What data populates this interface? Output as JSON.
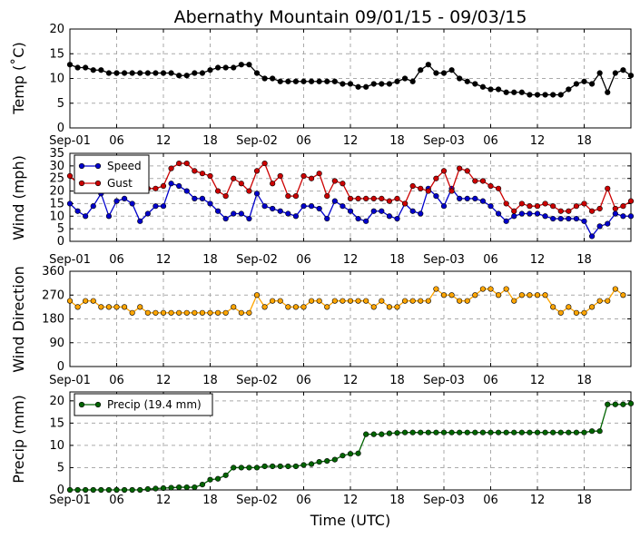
{
  "title": "Abernathy Mountain 09/01/15 - 09/03/15",
  "xlabel": "Time (UTC)",
  "x_tick_labels": [
    "Sep-01",
    "06",
    "12",
    "18",
    "Sep-02",
    "06",
    "12",
    "18",
    "Sep-03",
    "06",
    "12",
    "18"
  ],
  "colors": {
    "temp": "#000000",
    "speed": "#0000cc",
    "gust": "#cc0000",
    "direction": "#ffa500",
    "precip": "#006400",
    "grid": "#aaaaaa"
  },
  "chart_data": [
    {
      "id": "temp",
      "type": "line",
      "ylabel": "Temp (˚C)",
      "ylim": [
        0,
        20
      ],
      "yticks": [
        0,
        5,
        10,
        15,
        20
      ],
      "x_start_hour": 0,
      "x_step_hours": 1,
      "series": [
        {
          "name": "Temp",
          "color_key": "temp",
          "values": [
            12.8,
            12.2,
            12.2,
            11.7,
            11.7,
            11.1,
            11.1,
            11.1,
            11.1,
            11.1,
            11.1,
            11.1,
            11.1,
            11.1,
            10.6,
            10.6,
            11.1,
            11.1,
            11.7,
            12.2,
            12.2,
            12.2,
            12.8,
            12.8,
            11.1,
            10.0,
            10.0,
            9.4,
            9.4,
            9.4,
            9.4,
            9.4,
            9.4,
            9.4,
            9.4,
            8.9,
            8.9,
            8.3,
            8.3,
            8.9,
            8.9,
            8.9,
            9.4,
            10.0,
            9.4,
            11.7,
            12.8,
            11.1,
            11.1,
            11.7,
            10.0,
            9.4,
            8.9,
            8.3,
            7.8,
            7.8,
            7.2,
            7.2,
            7.2,
            6.7,
            6.7,
            6.7,
            6.7,
            6.7,
            7.8,
            8.9,
            9.4,
            8.9,
            11.1,
            7.2,
            11.1,
            11.7,
            10.6
          ]
        }
      ]
    },
    {
      "id": "wind",
      "type": "line",
      "ylabel": "Wind (mph)",
      "ylim": [
        0,
        35
      ],
      "yticks": [
        0,
        5,
        10,
        15,
        20,
        25,
        30,
        35
      ],
      "x_start_hour": 0,
      "x_step_hours": 1,
      "legend": {
        "placement": "upper-left",
        "labels": [
          "Speed",
          "Gust"
        ]
      },
      "series": [
        {
          "name": "Speed",
          "color_key": "speed",
          "values": [
            15,
            12,
            10,
            14,
            19,
            10,
            16,
            17,
            15,
            8,
            11,
            14,
            14,
            23,
            22,
            20,
            17,
            17,
            15,
            12,
            9,
            11,
            11,
            9,
            19,
            14,
            13,
            12,
            11,
            10,
            14,
            14,
            13,
            9,
            16,
            14,
            12,
            9,
            8,
            12,
            12,
            10,
            9,
            15,
            12,
            11,
            21,
            18,
            14,
            21,
            17,
            17,
            17,
            16,
            14,
            11,
            8,
            10,
            11,
            11,
            11,
            10,
            9,
            9,
            9,
            9,
            8,
            2,
            6,
            7,
            11,
            10,
            10
          ]
        },
        {
          "name": "Gust",
          "color_key": "gust",
          "values": [
            26,
            23,
            null,
            null,
            null,
            null,
            null,
            null,
            22,
            null,
            21,
            21,
            22,
            29,
            31,
            31,
            28,
            27,
            26,
            20,
            18,
            25,
            23,
            20,
            28,
            31,
            23,
            26,
            18,
            18,
            26,
            25,
            27,
            18,
            24,
            23,
            17,
            17,
            17,
            17,
            17,
            16,
            17,
            15,
            22,
            21,
            20,
            25,
            28,
            20,
            29,
            28,
            24,
            24,
            22,
            21,
            15,
            12,
            15,
            14,
            14,
            15,
            14,
            12,
            12,
            14,
            15,
            12,
            13,
            21,
            13,
            14,
            16
          ]
        }
      ]
    },
    {
      "id": "direction",
      "type": "line",
      "ylabel": "Wind Direction",
      "ylim": [
        0,
        360
      ],
      "yticks": [
        0,
        90,
        180,
        270,
        360
      ],
      "x_start_hour": 0,
      "x_step_hours": 1,
      "series": [
        {
          "name": "Direction",
          "color_key": "direction",
          "values": [
            248,
            225,
            248,
            248,
            225,
            225,
            225,
            225,
            203,
            225,
            203,
            203,
            203,
            203,
            203,
            203,
            203,
            203,
            203,
            203,
            203,
            225,
            203,
            203,
            270,
            225,
            248,
            248,
            225,
            225,
            225,
            248,
            248,
            225,
            248,
            248,
            248,
            248,
            248,
            225,
            248,
            225,
            225,
            248,
            248,
            248,
            248,
            293,
            270,
            270,
            248,
            248,
            270,
            293,
            293,
            270,
            293,
            248,
            270,
            270,
            270,
            270,
            225,
            203,
            225,
            203,
            203,
            225,
            248,
            248,
            293,
            270
          ]
        }
      ]
    },
    {
      "id": "precip",
      "type": "line",
      "ylabel": "Precip (mm)",
      "ylim": [
        0,
        22
      ],
      "yticks": [
        0,
        5,
        10,
        15,
        20
      ],
      "x_start_hour": 0,
      "x_step_hours": 1,
      "legend": {
        "placement": "upper-left",
        "labels": [
          "Precip (19.4 mm)"
        ]
      },
      "series": [
        {
          "name": "Precip (19.4 mm)",
          "color_key": "precip",
          "values": [
            0,
            0,
            0,
            0,
            0,
            0,
            0,
            0,
            0,
            0,
            0.2,
            0.3,
            0.4,
            0.5,
            0.6,
            0.6,
            0.6,
            1.2,
            2.3,
            2.5,
            3.3,
            5,
            5,
            5,
            5,
            5.3,
            5.3,
            5.3,
            5.3,
            5.3,
            5.6,
            5.8,
            6.3,
            6.5,
            6.8,
            7.7,
            8.1,
            8.2,
            12.5,
            12.5,
            12.5,
            12.7,
            12.8,
            12.9,
            12.9,
            12.9,
            12.9,
            12.9,
            12.9,
            12.9,
            12.9,
            12.9,
            12.9,
            12.9,
            12.9,
            12.9,
            12.9,
            12.9,
            12.9,
            12.9,
            12.9,
            12.9,
            12.9,
            12.9,
            12.9,
            12.9,
            12.9,
            13.2,
            13.2,
            19.2,
            19.2,
            19.2,
            19.4
          ]
        }
      ]
    }
  ]
}
